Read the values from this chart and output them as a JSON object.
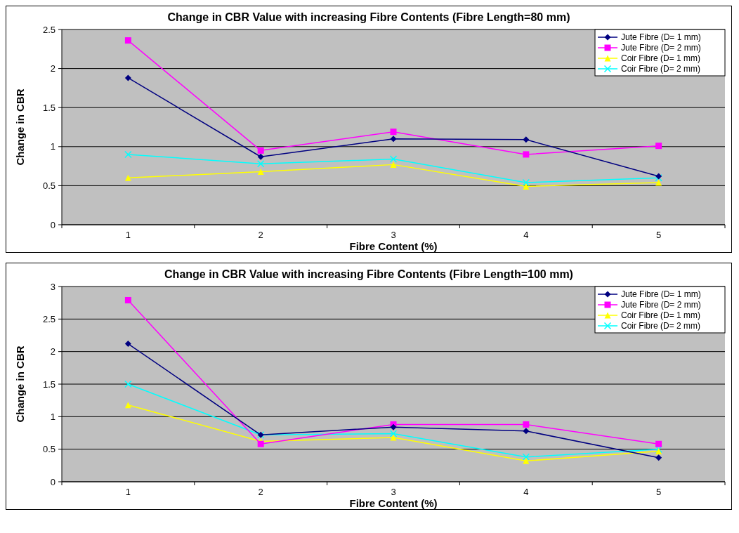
{
  "chart_data": [
    {
      "type": "line",
      "title": "Change in CBR Value with increasing Fibre Contents (Fibre Length=80 mm)",
      "xlabel": "Fibre Content (%)",
      "ylabel": "Change in CBR",
      "categories": [
        "1",
        "2",
        "3",
        "4",
        "5"
      ],
      "ylim": [
        0,
        2.5
      ],
      "yticks": [
        0,
        0.5,
        1,
        1.5,
        2,
        2.5
      ],
      "grid": "y",
      "legend": "top right",
      "series": [
        {
          "name": "Jute Fibre (D= 1 mm)",
          "color": "#000080",
          "marker": "diamond",
          "values": [
            1.88,
            0.87,
            1.1,
            1.09,
            0.62
          ]
        },
        {
          "name": "Jute Fibre (D= 2 mm)",
          "color": "#ff00ff",
          "marker": "square",
          "values": [
            2.36,
            0.95,
            1.19,
            0.9,
            1.01
          ]
        },
        {
          "name": "Coir Fibre (D= 1 mm)",
          "color": "#ffff00",
          "marker": "triangle",
          "values": [
            0.6,
            0.68,
            0.77,
            0.49,
            0.54
          ]
        },
        {
          "name": "Coir Fibre (D= 2 mm)",
          "color": "#00ffff",
          "marker": "cross",
          "values": [
            0.9,
            0.78,
            0.84,
            0.54,
            0.6
          ]
        }
      ]
    },
    {
      "type": "line",
      "title": "Change in CBR Value with increasing Fibre Contents (Fibre Length=100 mm)",
      "xlabel": "Fibre Content (%)",
      "ylabel": "Change in CBR",
      "categories": [
        "1",
        "2",
        "3",
        "4",
        "5"
      ],
      "ylim": [
        0,
        3
      ],
      "yticks": [
        0,
        0.5,
        1,
        1.5,
        2,
        2.5,
        3
      ],
      "grid": "y",
      "legend": "top right",
      "series": [
        {
          "name": "Jute Fibre (D= 1 mm)",
          "color": "#000080",
          "marker": "diamond",
          "values": [
            2.12,
            0.72,
            0.84,
            0.78,
            0.37
          ]
        },
        {
          "name": "Jute Fibre (D= 2 mm)",
          "color": "#ff00ff",
          "marker": "square",
          "values": [
            2.79,
            0.58,
            0.88,
            0.88,
            0.58
          ]
        },
        {
          "name": "Coir Fibre (D= 1 mm)",
          "color": "#ffff00",
          "marker": "triangle",
          "values": [
            1.18,
            0.62,
            0.68,
            0.32,
            0.47
          ]
        },
        {
          "name": "Coir Fibre (D= 2 mm)",
          "color": "#00ffff",
          "marker": "cross",
          "values": [
            1.5,
            0.72,
            0.74,
            0.38,
            0.5
          ]
        }
      ]
    }
  ]
}
